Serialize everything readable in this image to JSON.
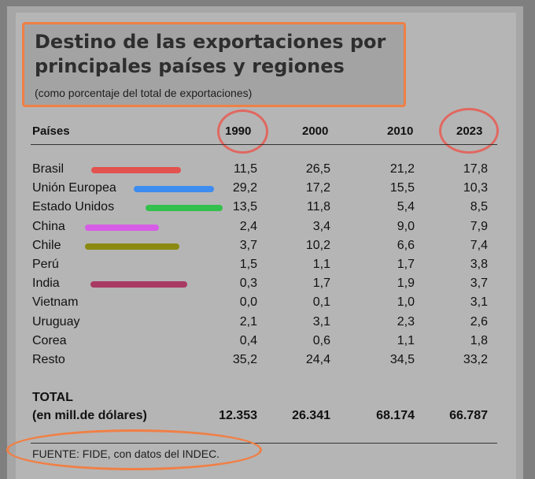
{
  "title": "Destino de las exportaciones por principales países y regiones",
  "subtitle": "(como porcentaje del total de exportaciones)",
  "source": "FUENTE: FIDE, con datos del INDEC.",
  "colors": {
    "annotation_orange": "#f07f45",
    "annotation_red": "#e06860",
    "Brasil": "#e2524f",
    "Unión Europea": "#3d8cf0",
    "Estado Unidos": "#34c04c",
    "China": "#d75ce6",
    "Chile": "#8a8a12",
    "India": "#a83a64"
  },
  "chart_data": {
    "type": "table",
    "title": "Destino de las exportaciones por principales países y regiones",
    "subtitle": "(como porcentaje del total de exportaciones)",
    "column_header": "Países",
    "columns": [
      "1990",
      "2000",
      "2010",
      "2023"
    ],
    "rows": [
      {
        "label": "Brasil",
        "values": [
          "11,5",
          "26,5",
          "21,2",
          "17,8"
        ]
      },
      {
        "label": "Unión Europea",
        "values": [
          "29,2",
          "17,2",
          "15,5",
          "10,3"
        ]
      },
      {
        "label": "Estado Unidos",
        "values": [
          "13,5",
          "11,8",
          "5,4",
          "8,5"
        ]
      },
      {
        "label": "China",
        "values": [
          "2,4",
          "3,4",
          "9,0",
          "7,9"
        ]
      },
      {
        "label": "Chile",
        "values": [
          "3,7",
          "10,2",
          "6,6",
          "7,4"
        ]
      },
      {
        "label": "Perú",
        "values": [
          "1,5",
          "1,1",
          "1,7",
          "3,8"
        ]
      },
      {
        "label": "India",
        "values": [
          "0,3",
          "1,7",
          "1,9",
          "3,7"
        ]
      },
      {
        "label": "Vietnam",
        "values": [
          "0,0",
          "0,1",
          "1,0",
          "3,1"
        ]
      },
      {
        "label": "Uruguay",
        "values": [
          "2,1",
          "3,1",
          "2,3",
          "2,6"
        ]
      },
      {
        "label": "Corea",
        "values": [
          "0,4",
          "0,6",
          "1,1",
          "1,8"
        ]
      },
      {
        "label": "Resto",
        "values": [
          "35,2",
          "24,4",
          "34,5",
          "33,2"
        ]
      }
    ],
    "total": {
      "label": "TOTAL",
      "sublabel": "(en mill.de dólares)",
      "values": [
        "12.353",
        "26.341",
        "68.174",
        "66.787"
      ]
    },
    "highlighted_columns": [
      "1990",
      "2023"
    ],
    "highlighted_rows": [
      "Brasil",
      "Unión Europea",
      "Estado Unidos",
      "China",
      "Chile",
      "India"
    ]
  }
}
